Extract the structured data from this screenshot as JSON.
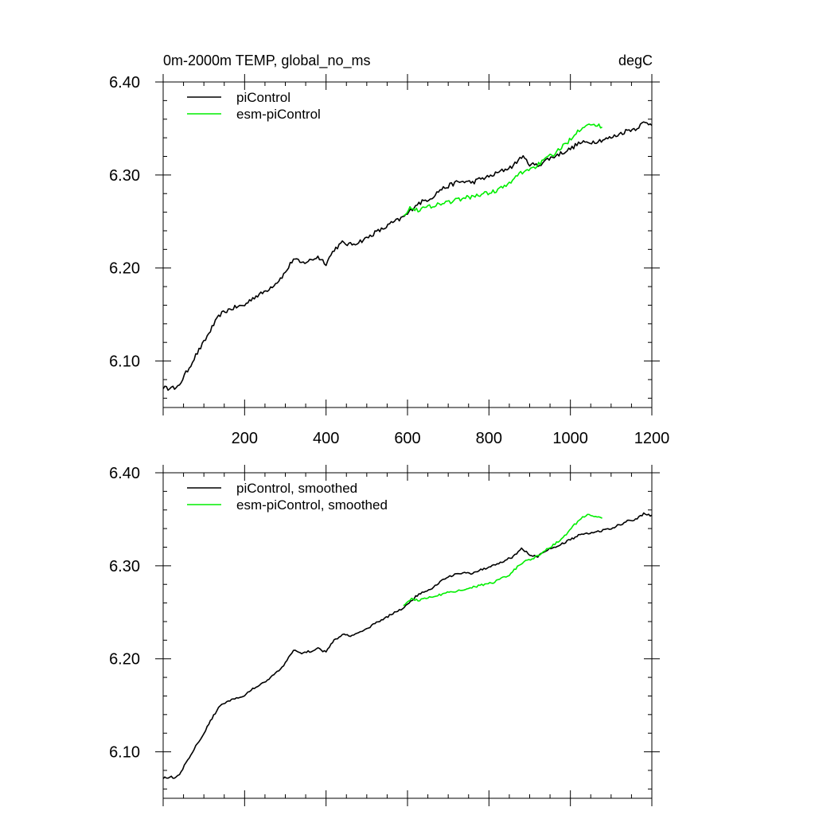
{
  "chart_data": [
    {
      "type": "line",
      "title": "0m-2000m TEMP, global_no_ms",
      "units": "degC",
      "xlim": [
        0,
        1200
      ],
      "ylim": [
        6.05,
        6.4
      ],
      "xticks": [
        200,
        400,
        600,
        800,
        1000,
        1200
      ],
      "xtick_labels": [
        "200",
        "400",
        "600",
        "800",
        "1000",
        "1200"
      ],
      "yticks": [
        6.1,
        6.2,
        6.3,
        6.4
      ],
      "ytick_labels": [
        "6.10",
        "6.20",
        "6.30",
        "6.40"
      ],
      "legend_position": "top-left",
      "series": [
        {
          "name": "piControl",
          "color": "#000000",
          "x": [
            0,
            10,
            20,
            30,
            40,
            60,
            80,
            100,
            120,
            140,
            160,
            180,
            200,
            220,
            240,
            260,
            280,
            300,
            320,
            340,
            360,
            380,
            400,
            420,
            440,
            460,
            480,
            500,
            520,
            540,
            560,
            580,
            600,
            620,
            640,
            660,
            680,
            700,
            720,
            740,
            760,
            780,
            800,
            820,
            840,
            860,
            880,
            900,
            920,
            940,
            960,
            980,
            1000,
            1020,
            1040,
            1060,
            1080,
            1100,
            1120,
            1140,
            1160,
            1180,
            1200
          ],
          "y": [
            6.072,
            6.07,
            6.074,
            6.068,
            6.075,
            6.09,
            6.106,
            6.12,
            6.136,
            6.15,
            6.155,
            6.158,
            6.16,
            6.168,
            6.172,
            6.178,
            6.185,
            6.195,
            6.21,
            6.205,
            6.208,
            6.212,
            6.205,
            6.22,
            6.227,
            6.225,
            6.228,
            6.232,
            6.238,
            6.242,
            6.248,
            6.252,
            6.258,
            6.268,
            6.272,
            6.276,
            6.284,
            6.288,
            6.292,
            6.293,
            6.292,
            6.296,
            6.298,
            6.302,
            6.306,
            6.31,
            6.32,
            6.312,
            6.31,
            6.316,
            6.32,
            6.324,
            6.328,
            6.334,
            6.335,
            6.336,
            6.338,
            6.34,
            6.344,
            6.348,
            6.35,
            6.356,
            6.355
          ]
        },
        {
          "name": "esm-piControl",
          "color": "#00ee00",
          "x": [
            590,
            610,
            630,
            650,
            670,
            690,
            710,
            730,
            750,
            770,
            790,
            810,
            830,
            850,
            870,
            890,
            910,
            930,
            950,
            970,
            990,
            1010,
            1030,
            1045,
            1060,
            1080
          ],
          "y": [
            6.258,
            6.265,
            6.262,
            6.266,
            6.268,
            6.27,
            6.272,
            6.274,
            6.276,
            6.278,
            6.28,
            6.282,
            6.286,
            6.29,
            6.3,
            6.305,
            6.308,
            6.314,
            6.32,
            6.326,
            6.334,
            6.344,
            6.352,
            6.356,
            6.353,
            6.352
          ]
        }
      ]
    },
    {
      "type": "line",
      "xlim": [
        0,
        1200
      ],
      "ylim": [
        6.05,
        6.4
      ],
      "yticks": [
        6.1,
        6.2,
        6.3,
        6.4
      ],
      "ytick_labels": [
        "6.10",
        "6.20",
        "6.30",
        "6.40"
      ],
      "legend_position": "top-left",
      "series": [
        {
          "name": "piControl, smoothed",
          "color": "#000000",
          "x": [
            0,
            10,
            20,
            30,
            40,
            60,
            80,
            100,
            120,
            140,
            160,
            180,
            200,
            220,
            240,
            260,
            280,
            300,
            320,
            340,
            360,
            380,
            400,
            420,
            440,
            460,
            480,
            500,
            520,
            540,
            560,
            580,
            600,
            620,
            640,
            660,
            680,
            700,
            720,
            740,
            760,
            780,
            800,
            820,
            840,
            860,
            880,
            900,
            920,
            940,
            960,
            980,
            1000,
            1020,
            1040,
            1060,
            1080,
            1100,
            1120,
            1140,
            1160,
            1180,
            1200
          ],
          "y": [
            6.072,
            6.072,
            6.073,
            6.071,
            6.076,
            6.091,
            6.106,
            6.12,
            6.136,
            6.15,
            6.155,
            6.158,
            6.161,
            6.168,
            6.172,
            6.178,
            6.186,
            6.195,
            6.21,
            6.206,
            6.208,
            6.211,
            6.207,
            6.22,
            6.226,
            6.225,
            6.229,
            6.232,
            6.238,
            6.242,
            6.248,
            6.252,
            6.258,
            6.267,
            6.272,
            6.276,
            6.283,
            6.288,
            6.291,
            6.292,
            6.292,
            6.296,
            6.298,
            6.302,
            6.306,
            6.31,
            6.319,
            6.312,
            6.31,
            6.316,
            6.32,
            6.324,
            6.328,
            6.333,
            6.335,
            6.336,
            6.338,
            6.34,
            6.344,
            6.348,
            6.35,
            6.356,
            6.354
          ]
        },
        {
          "name": "esm-piControl, smoothed",
          "color": "#00ee00",
          "x": [
            590,
            610,
            630,
            650,
            670,
            690,
            710,
            730,
            750,
            770,
            790,
            810,
            830,
            850,
            870,
            890,
            910,
            930,
            950,
            970,
            990,
            1010,
            1030,
            1045,
            1060,
            1080
          ],
          "y": [
            6.258,
            6.264,
            6.263,
            6.266,
            6.268,
            6.27,
            6.272,
            6.274,
            6.276,
            6.278,
            6.28,
            6.282,
            6.286,
            6.29,
            6.299,
            6.305,
            6.308,
            6.314,
            6.32,
            6.326,
            6.334,
            6.344,
            6.352,
            6.355,
            6.353,
            6.351
          ]
        }
      ]
    }
  ]
}
